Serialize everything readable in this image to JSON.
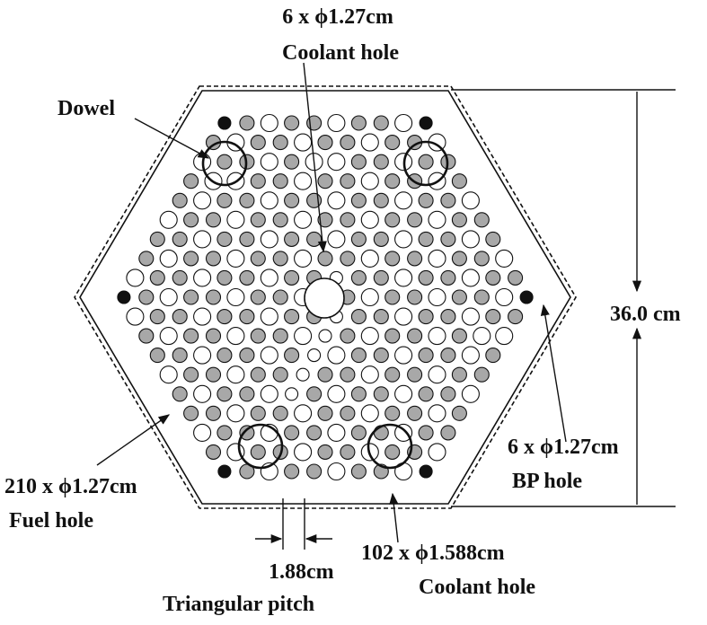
{
  "labels": {
    "top_coolant_count": "6 x ϕ1.27cm",
    "top_coolant_name": "Coolant hole",
    "dowel": "Dowel",
    "dimension": "36.0 cm",
    "bp_count": "6 x ϕ1.27cm",
    "bp_name": "BP hole",
    "fuel_count": "210 x ϕ1.27cm",
    "fuel_name": "Fuel hole",
    "pitch_value": "1.88cm",
    "pitch_name": "Triangular pitch",
    "big_coolant_count": "102 x ϕ1.588cm",
    "big_coolant_name": "Coolant hole"
  },
  "colors": {
    "fuel_hole": "#a8a8a8",
    "coolant_hole": "#ffffff",
    "bp_hole": "#111111",
    "outline": "#111111"
  },
  "counts": {
    "fuel_holes": 210,
    "large_coolant_holes": 102,
    "small_coolant_holes": 6,
    "bp_holes": 6
  }
}
